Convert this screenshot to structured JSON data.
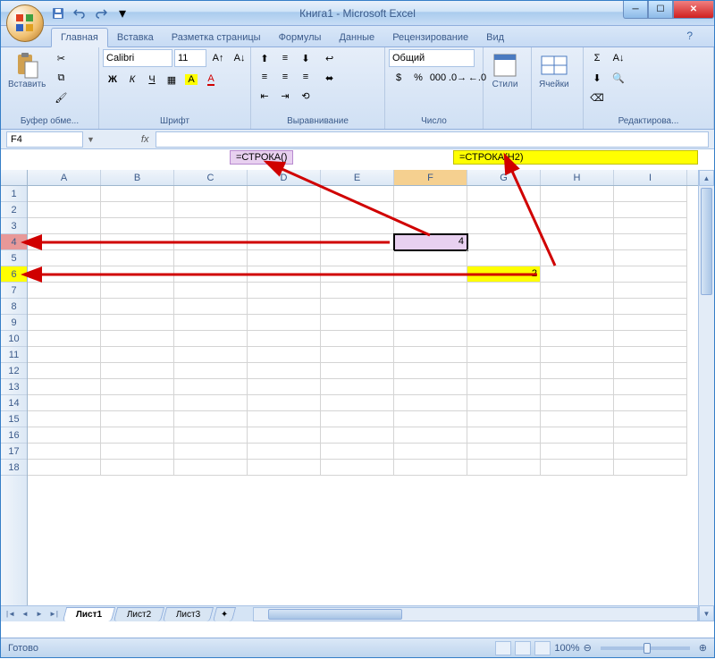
{
  "window": {
    "title": "Книга1 - Microsoft Excel"
  },
  "tabs": {
    "items": [
      "Главная",
      "Вставка",
      "Разметка страницы",
      "Формулы",
      "Данные",
      "Рецензирование",
      "Вид"
    ],
    "active_index": 0
  },
  "ribbon": {
    "clipboard": {
      "label": "Буфер обме...",
      "paste": "Вставить"
    },
    "font": {
      "label": "Шрифт",
      "name": "Calibri",
      "size": "11",
      "bold": "Ж",
      "italic": "К",
      "underline": "Ч"
    },
    "alignment": {
      "label": "Выравнивание"
    },
    "number": {
      "label": "Число",
      "format": "Общий"
    },
    "styles": {
      "label": "Стили"
    },
    "cells": {
      "label": "Ячейки"
    },
    "editing": {
      "label": "Редактирова..."
    }
  },
  "formula_bar": {
    "name_box": "F4",
    "fx": "fx",
    "formula1": "=СТРОКА()",
    "formula2": "=СТРОКА(H2)"
  },
  "sheet": {
    "columns": [
      "A",
      "B",
      "C",
      "D",
      "E",
      "F",
      "G",
      "H",
      "I"
    ],
    "row_count": 18,
    "active_col_index": 5,
    "active_row": 4,
    "cells": {
      "F4": {
        "value": "4",
        "style": "active"
      },
      "G6": {
        "value": "2",
        "style": "yellow"
      }
    },
    "row_highlights": {
      "4": "hl-pink",
      "6": "hl-yellow"
    }
  },
  "sheet_tabs": {
    "items": [
      "Лист1",
      "Лист2",
      "Лист3"
    ],
    "active_index": 0
  },
  "statusbar": {
    "status": "Готово",
    "zoom": "100%"
  },
  "colors": {
    "highlight_pink": "#e8d0f0",
    "highlight_yellow": "#ffff00",
    "arrow": "#d00000"
  }
}
